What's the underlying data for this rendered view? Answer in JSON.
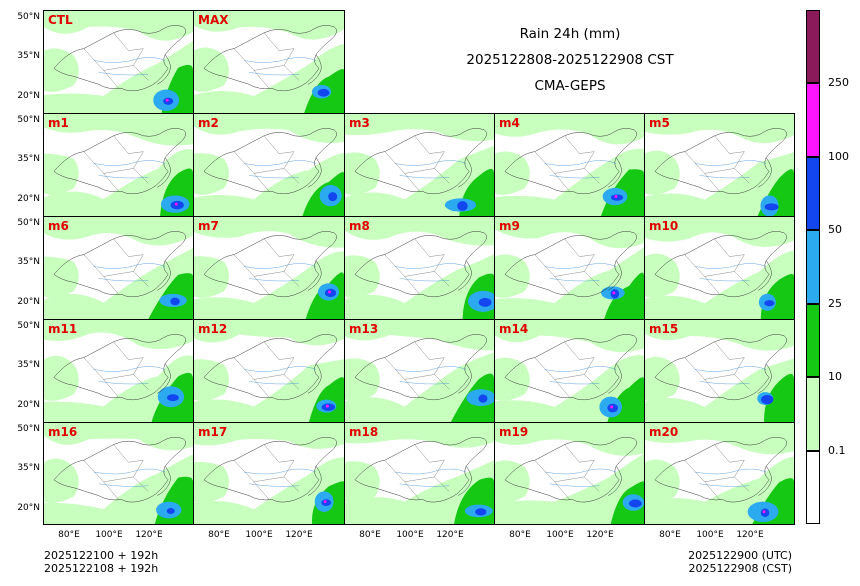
{
  "title": {
    "line1": "Rain 24h (mm)",
    "line2": "2025122808-2025122908 CST",
    "line3": "CMA-GEPS"
  },
  "panels": [
    "CTL",
    "MAX",
    "m1",
    "m2",
    "m3",
    "m4",
    "m5",
    "m6",
    "m7",
    "m8",
    "m9",
    "m10",
    "m11",
    "m12",
    "m13",
    "m14",
    "m15",
    "m16",
    "m17",
    "m18",
    "m19",
    "m20"
  ],
  "lat_labels": [
    "50°N",
    "35°N",
    "20°N"
  ],
  "lon_labels": [
    "80°E",
    "100°E",
    "120°E"
  ],
  "colorbar": {
    "levels": [
      "0.1",
      "10",
      "25",
      "50",
      "100",
      "250"
    ],
    "colors": [
      "#ffffff",
      "#c8ffbe",
      "#14c814",
      "#2baaf0",
      "#1446f0",
      "#ff14ff",
      "#8b1a5a"
    ]
  },
  "footer_left": {
    "line1": "2025122100 + 192h",
    "line2": "2025122108 + 192h"
  },
  "footer_right": {
    "line1": "2025122900 (UTC)",
    "line2": "2025122908 (CST)"
  }
}
